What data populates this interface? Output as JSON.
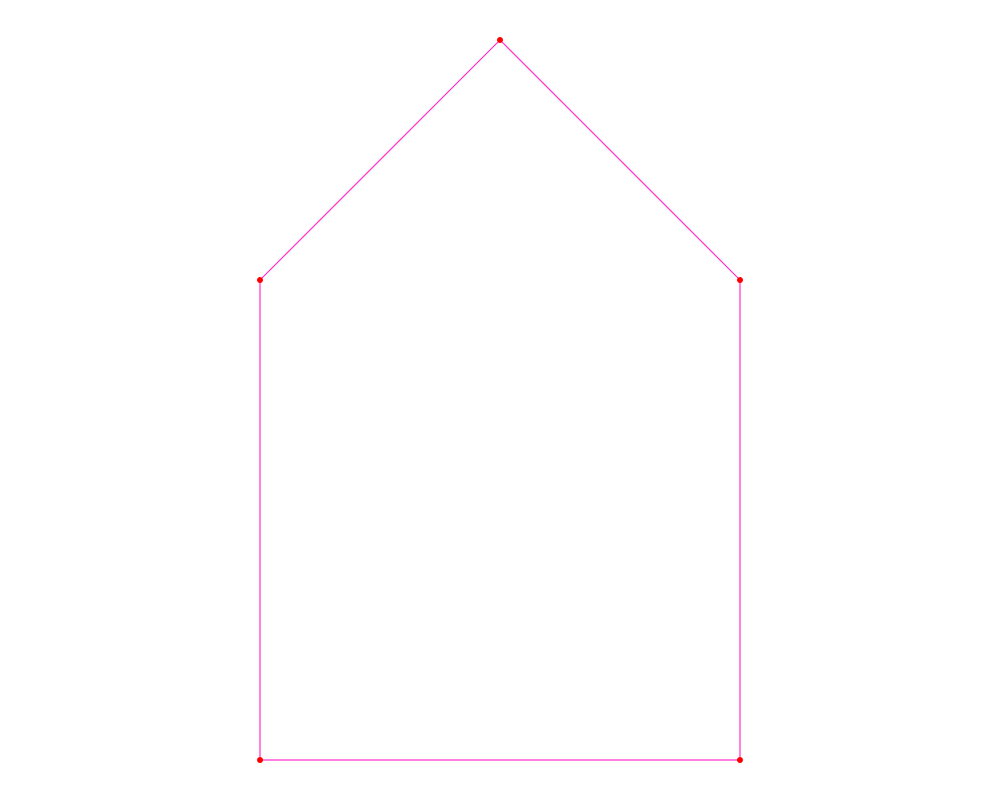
{
  "diagram": {
    "shape": "house-pentagon",
    "closed": true,
    "edge_color": "#ff33cc",
    "vertex_color": "#ff0000",
    "vertex_count": 5,
    "labels": []
  }
}
